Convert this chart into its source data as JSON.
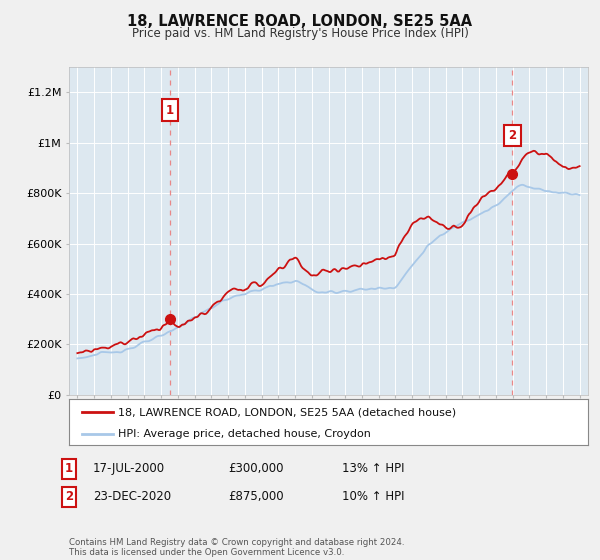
{
  "title": "18, LAWRENCE ROAD, LONDON, SE25 5AA",
  "subtitle": "Price paid vs. HM Land Registry's House Price Index (HPI)",
  "legend_line1": "18, LAWRENCE ROAD, LONDON, SE25 5AA (detached house)",
  "legend_line2": "HPI: Average price, detached house, Croydon",
  "annotation1_label": "1",
  "annotation1_date": "17-JUL-2000",
  "annotation1_price": "£300,000",
  "annotation1_hpi": "13% ↑ HPI",
  "annotation2_label": "2",
  "annotation2_date": "23-DEC-2020",
  "annotation2_price": "£875,000",
  "annotation2_hpi": "10% ↑ HPI",
  "footer": "Contains HM Land Registry data © Crown copyright and database right 2024.\nThis data is licensed under the Open Government Licence v3.0.",
  "hpi_color": "#a8c8e8",
  "price_color": "#cc1111",
  "sale_marker_color": "#cc1111",
  "annotation_box_color": "#cc1111",
  "vline_color": "#e88888",
  "background_color": "#f0f0f0",
  "plot_bg_color": "#dde8f0",
  "grid_color": "#ffffff",
  "ylim": [
    0,
    1300000
  ],
  "yticks": [
    0,
    200000,
    400000,
    600000,
    800000,
    1000000,
    1200000
  ],
  "ytick_labels": [
    "£0",
    "£200K",
    "£400K",
    "£600K",
    "£800K",
    "£1M",
    "£1.2M"
  ],
  "sale1_t": 2000.54,
  "sale1_v": 300000,
  "sale2_t": 2020.98,
  "sale2_v": 875000
}
